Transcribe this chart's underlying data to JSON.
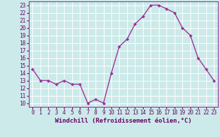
{
  "x": [
    0,
    1,
    2,
    3,
    4,
    5,
    6,
    7,
    8,
    9,
    10,
    11,
    12,
    13,
    14,
    15,
    16,
    17,
    18,
    19,
    20,
    21,
    22,
    23
  ],
  "y": [
    14.5,
    13.0,
    13.0,
    12.5,
    13.0,
    12.5,
    12.5,
    10.0,
    10.5,
    10.0,
    14.0,
    17.5,
    18.5,
    20.5,
    21.5,
    23.0,
    23.0,
    22.5,
    22.0,
    20.0,
    19.0,
    16.0,
    14.5,
    13.0
  ],
  "line_color": "#993399",
  "marker": "D",
  "marker_size": 2.0,
  "line_width": 1.0,
  "xlabel": "Windchill (Refroidissement éolien,°C)",
  "xlabel_fontsize": 6.5,
  "xlabel_color": "#660066",
  "xlabel_bold": true,
  "ylim": [
    9.5,
    23.5
  ],
  "xlim": [
    -0.5,
    23.5
  ],
  "yticks": [
    10,
    11,
    12,
    13,
    14,
    15,
    16,
    17,
    18,
    19,
    20,
    21,
    22,
    23
  ],
  "xticks": [
    0,
    1,
    2,
    3,
    4,
    5,
    6,
    7,
    8,
    9,
    10,
    11,
    12,
    13,
    14,
    15,
    16,
    17,
    18,
    19,
    20,
    21,
    22,
    23
  ],
  "tick_fontsize": 5.5,
  "background_color": "#cceaea",
  "grid_color": "#ffffff",
  "grid_linewidth": 0.7,
  "spine_color": "#993399",
  "tick_color": "#660066"
}
